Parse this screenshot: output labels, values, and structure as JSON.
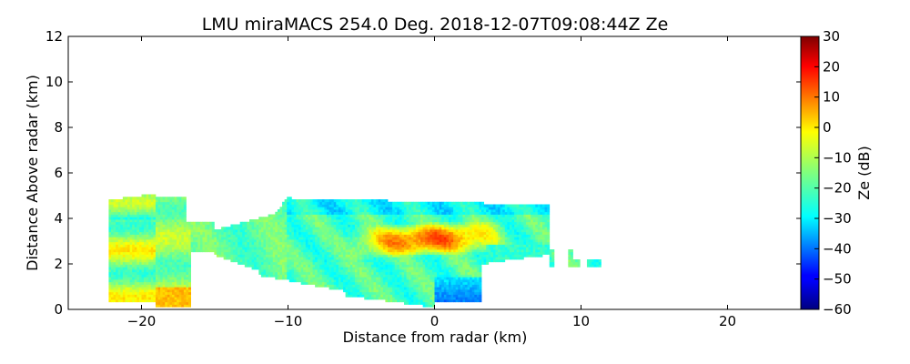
{
  "chart_data": {
    "type": "heatmap",
    "title": "LMU miraMACS 254.0 Deg. 2018-12-07T09:08:44Z  Ze",
    "xlabel": "Distance from radar (km)",
    "ylabel": "Distance Above radar  (km)",
    "xlim": [
      -25,
      25
    ],
    "ylim": [
      0,
      12
    ],
    "x_ticks": [
      -20,
      -10,
      0,
      10,
      20
    ],
    "x_tick_labels": [
      "−20",
      "−10",
      "0",
      "10",
      "20"
    ],
    "y_ticks": [
      0,
      2,
      4,
      6,
      8,
      10,
      12
    ],
    "y_tick_labels": [
      "0",
      "2",
      "4",
      "6",
      "8",
      "10",
      "12"
    ],
    "colorbar": {
      "label": "Ze (dB)",
      "range": [
        -60,
        30
      ],
      "ticks": [
        30,
        20,
        10,
        0,
        -10,
        -20,
        -30,
        -40,
        -50,
        -60
      ],
      "tick_labels": [
        "30",
        "20",
        "10",
        "0",
        "−10",
        "−20",
        "−30",
        "−40",
        "−50",
        "−60"
      ],
      "colormap": "jet"
    },
    "echo_regions": [
      {
        "x_range": [
          -22,
          -17
        ],
        "z_range": [
          0.2,
          5.2
        ],
        "ze_range_db": [
          -20,
          10
        ]
      },
      {
        "x_range": [
          -17,
          -11
        ],
        "z_range": [
          1.5,
          4.0
        ],
        "ze_range_db": [
          -25,
          -10
        ]
      },
      {
        "x_range": [
          -11,
          8
        ],
        "z_range": [
          0.2,
          5.0
        ],
        "ze_range_db": [
          -45,
          15
        ]
      },
      {
        "x_range": [
          -6,
          4
        ],
        "z_range": [
          2.2,
          4.0
        ],
        "ze_range_db": [
          5,
          15
        ]
      },
      {
        "x_range": [
          0,
          3
        ],
        "z_range": [
          0.3,
          1.5
        ],
        "ze_range_db": [
          -50,
          -30
        ]
      },
      {
        "x_range": [
          8,
          11.5
        ],
        "z_range": [
          1.8,
          2.6
        ],
        "ze_range_db": [
          -25,
          -15
        ]
      }
    ]
  }
}
